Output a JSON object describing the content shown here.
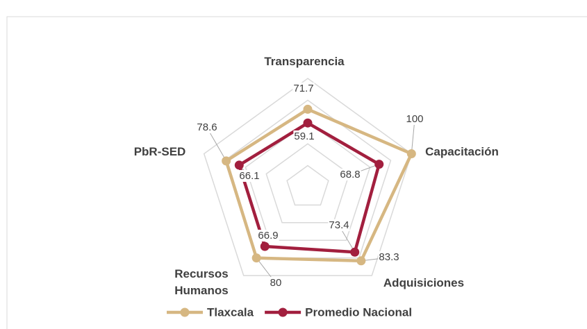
{
  "chart_data": {
    "type": "radar",
    "categories": [
      "Transparencia",
      "Capacitación",
      "Adquisiciones",
      "Recursos Humanos",
      "PbR-SED"
    ],
    "series": [
      {
        "name": "Tlaxcala",
        "color": "#d6b782",
        "values": [
          71.7,
          100,
          83.3,
          80,
          78.6
        ]
      },
      {
        "name": "Promedio Nacional",
        "color": "#a21f3e",
        "values": [
          59.1,
          68.8,
          73.4,
          66.9,
          66.1
        ]
      }
    ],
    "rlim": [
      0,
      100
    ],
    "rticks": [
      20,
      40,
      60,
      80,
      100
    ],
    "grid": true,
    "legend": "bottom"
  }
}
